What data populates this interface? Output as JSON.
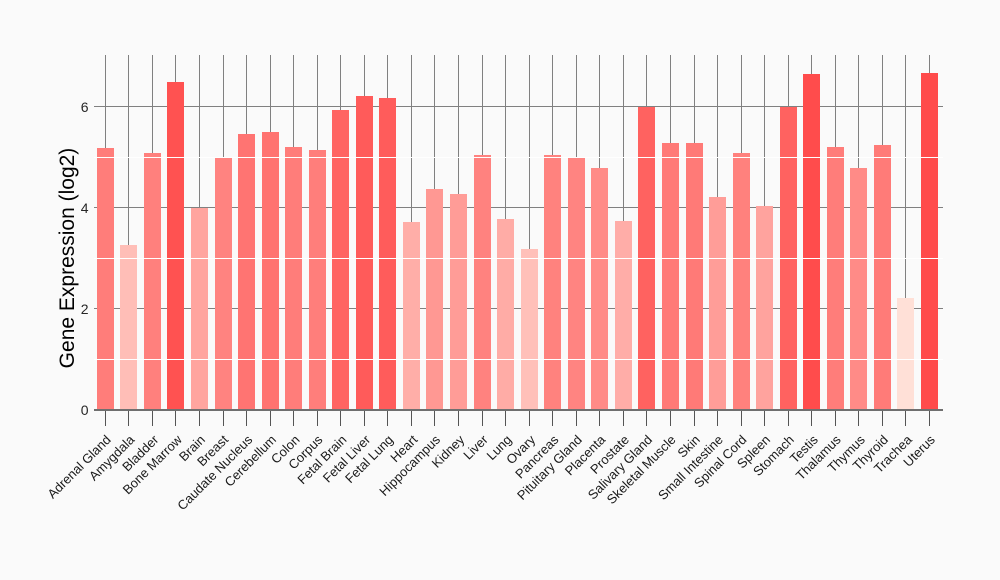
{
  "page": {
    "background_color": "#fafafa"
  },
  "chart_data": {
    "type": "bar",
    "title": "",
    "xlabel": "",
    "ylabel": "Gene Expression (log2)",
    "ylim": [
      0,
      7.02
    ],
    "yticks_major": [
      0,
      2,
      4,
      6
    ],
    "ytick_labels": [
      "0",
      "2",
      "4",
      "6"
    ],
    "yticks_minor": [
      1,
      3,
      5
    ],
    "grid": "vertical gray line per category and horizontal gray lines at major ticks behind bars; white minor gridlines at odd values drawn over bars",
    "legend": "none",
    "categories": [
      "Adrenal Gland",
      "Amygdala",
      "Bladder",
      "Bone Marrow",
      "Brain",
      "Breast",
      "Caudate Nucleus",
      "Cerebellum",
      "Colon",
      "Corpus",
      "Fetal Brain",
      "Fetal Liver",
      "Fetal Lung",
      "Heart",
      "Hippocampus",
      "Kidney",
      "Liver",
      "Lung",
      "Ovary",
      "Pancreas",
      "Pituitary Gland",
      "Placenta",
      "Prostate",
      "Salivary Gland",
      "Skeletal Muscle",
      "Skin",
      "Small Intestine",
      "Spinal Cord",
      "Spleen",
      "Stomach",
      "Testis",
      "Thalamus",
      "Thymus",
      "Thyroid",
      "Trachea",
      "Uterus"
    ],
    "values": [
      5.19,
      3.26,
      5.09,
      6.48,
      4.0,
      5.0,
      5.45,
      5.5,
      5.2,
      5.15,
      5.94,
      6.21,
      6.16,
      3.71,
      4.38,
      4.27,
      5.04,
      3.78,
      3.18,
      5.05,
      4.98,
      4.78,
      3.74,
      6.0,
      5.27,
      5.28,
      4.22,
      5.08,
      4.04,
      6.0,
      6.65,
      5.2,
      4.78,
      5.24,
      2.22,
      6.67
    ],
    "color_scale": {
      "low": "#ffe1d8",
      "high": "#ff4b4b",
      "vmin": 2.2,
      "vmax": 6.68
    },
    "colors": {
      "gridline": "#808080",
      "minor_gridline": "#ffffff",
      "axis_line": "#6f6f6f",
      "tick_mark": "#555555",
      "tick_label": "#262626",
      "axis_title": "#000000",
      "background": "#fafafa"
    }
  }
}
